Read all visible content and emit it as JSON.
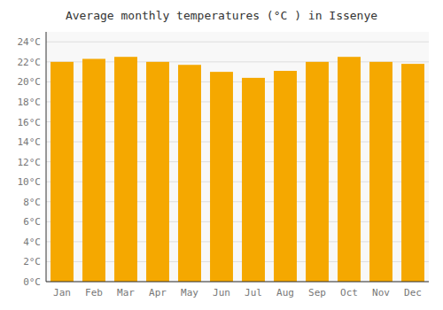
{
  "chart_data": {
    "type": "bar",
    "title": "Average monthly temperatures (°C ) in Issenye",
    "categories": [
      "Jan",
      "Feb",
      "Mar",
      "Apr",
      "May",
      "Jun",
      "Jul",
      "Aug",
      "Sep",
      "Oct",
      "Nov",
      "Dec"
    ],
    "values": [
      22.0,
      22.3,
      22.5,
      22.0,
      21.7,
      21.0,
      20.4,
      21.1,
      22.0,
      22.5,
      22.0,
      21.8
    ],
    "color": "#F5A800",
    "ylim": [
      0,
      25
    ],
    "yticks": [
      {
        "value": 0,
        "label": "0°C"
      },
      {
        "value": 2,
        "label": "2°C"
      },
      {
        "value": 4,
        "label": "4°C"
      },
      {
        "value": 6,
        "label": "6°C"
      },
      {
        "value": 8,
        "label": "8°C"
      },
      {
        "value": 10,
        "label": "10°C"
      },
      {
        "value": 12,
        "label": "12°C"
      },
      {
        "value": 14,
        "label": "14°C"
      },
      {
        "value": 16,
        "label": "16°C"
      },
      {
        "value": 18,
        "label": "18°C"
      },
      {
        "value": 20,
        "label": "20°C"
      },
      {
        "value": 22,
        "label": "22°C"
      },
      {
        "value": 24,
        "label": "24°C"
      }
    ],
    "grid": true
  }
}
